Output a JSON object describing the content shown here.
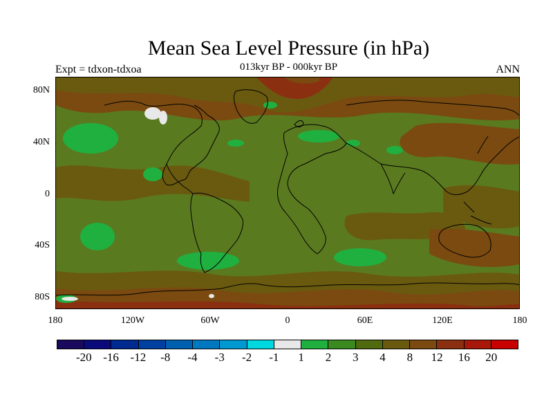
{
  "title": "Mean Sea Level Pressure (in hPa)",
  "subtitle": "013kyr BP - 000kyr BP",
  "left_string": "Expt = tdxon-tdxoa",
  "right_string": "ANN",
  "lat_labels": [
    "80N",
    "40N",
    "0",
    "40S",
    "80S"
  ],
  "lon_labels": [
    "180",
    "120W",
    "60W",
    "0",
    "60E",
    "120E",
    "180"
  ],
  "colorbar": {
    "colors": [
      "#1a0a5e",
      "#0a0a7a",
      "#002a90",
      "#0040a0",
      "#0060b0",
      "#0078c0",
      "#0098d0",
      "#00d8e0",
      "#e8e8e8",
      "#20b040",
      "#3a8a20",
      "#506a10",
      "#6a5a10",
      "#7a4a10",
      "#8a3010",
      "#a81808",
      "#c80000"
    ],
    "labels": [
      "-20",
      "-16",
      "-12",
      "-8",
      "-4",
      "-3",
      "-2",
      "-1",
      "1",
      "2",
      "3",
      "4",
      "8",
      "12",
      "16",
      "20"
    ]
  },
  "map_colors": {
    "background": "#5a7a20",
    "high_anomaly": "#7a4a10",
    "moderate_anomaly": "#6a5a10",
    "low_anomaly": "#20b040",
    "near_zero": "#e8e8e8",
    "strong_anomaly": "#8a3010",
    "coastline": "#000000"
  }
}
